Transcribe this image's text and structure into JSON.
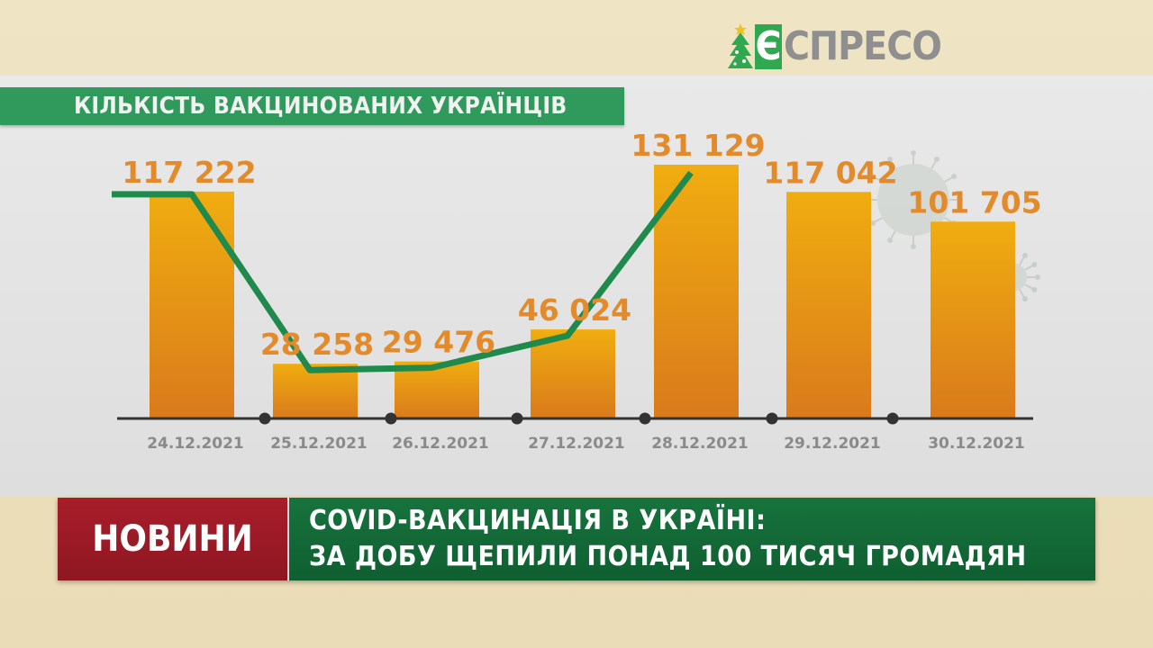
{
  "logo": {
    "letter": "Є",
    "text": "СПРЕСО"
  },
  "colors": {
    "bar_top": "#f0ad10",
    "bar_bottom": "#d97a1c",
    "value_label": "#e38b2a",
    "trend_line": "#1f8a4c",
    "axis": "#333333",
    "title_bar": "#2f9a5b",
    "ticker_label_bg": "#a81d2a",
    "ticker_headline_bg": "#17733c"
  },
  "chart_data": {
    "type": "bar",
    "title": "КІЛЬКІСТЬ ВАКЦИНОВАНИХ УКРАЇНЦІВ",
    "categories": [
      "24.12.2021",
      "25.12.2021",
      "26.12.2021",
      "27.12.2021",
      "28.12.2021",
      "29.12.2021",
      "30.12.2021"
    ],
    "values": [
      117222,
      28258,
      29476,
      46024,
      131129,
      117042,
      101705
    ],
    "value_labels": [
      "117 222",
      "28 258",
      "29 476",
      "46 024",
      "131 129",
      "117 042",
      "101 705"
    ],
    "trend_line": true,
    "ylim": [
      0,
      131129
    ],
    "grid": false,
    "legend": "none"
  },
  "ticker": {
    "label": "НОВИНИ",
    "headline_line1": "COVID-ВАКЦИНАЦІЯ В УКРАЇНІ:",
    "headline_line2": "ЗА ДОБУ ЩЕПИЛИ ПОНАД 100 ТИСЯЧ ГРОМАДЯН"
  },
  "decorations": {
    "virus_icon": "coronavirus-icon",
    "tree_icon": "christmas-tree-icon"
  }
}
